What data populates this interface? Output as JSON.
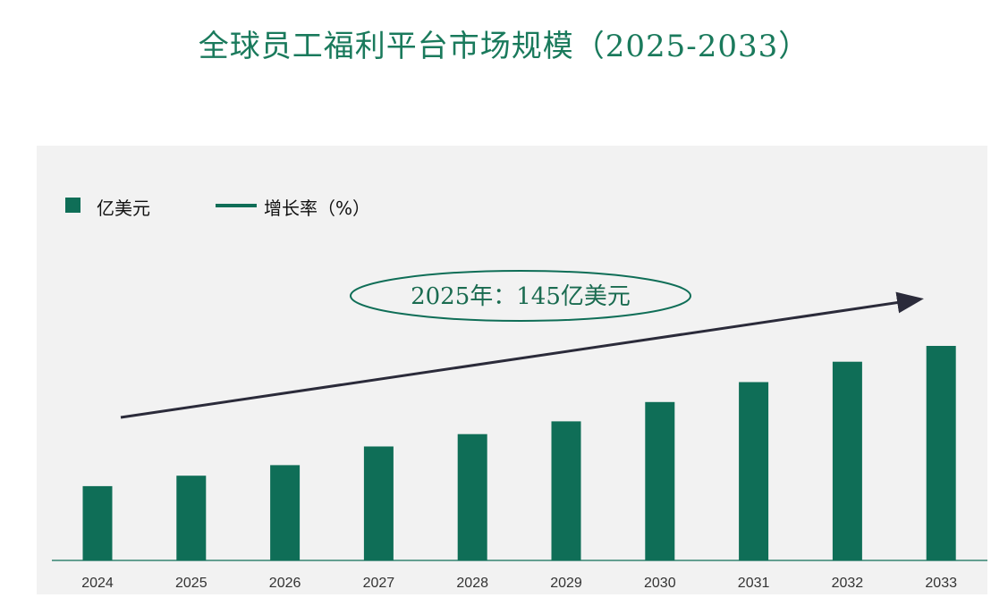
{
  "title": "全球员工福利平台市场规模（2025-2033）",
  "colors": {
    "bar": "#0f6e57",
    "trend": "#2b2b3a",
    "axis": "#0f6e57",
    "panel": "#f2f2f2"
  },
  "legend": {
    "bar_label": "亿美元",
    "line_label": "增长率（%）"
  },
  "callout": {
    "text": "2025年：145亿美元"
  },
  "chart_data": {
    "type": "bar",
    "categories": [
      "2024",
      "2025",
      "2026",
      "2027",
      "2028",
      "2029",
      "2030",
      "2031",
      "2032",
      "2033"
    ],
    "series": [
      {
        "name": "亿美元",
        "values": [
          127,
          145,
          163,
          195,
          216,
          238,
          271,
          305,
          340,
          367
        ]
      }
    ],
    "ylim": [
      0,
      400
    ],
    "grid": false,
    "legend_position": "top-left"
  }
}
